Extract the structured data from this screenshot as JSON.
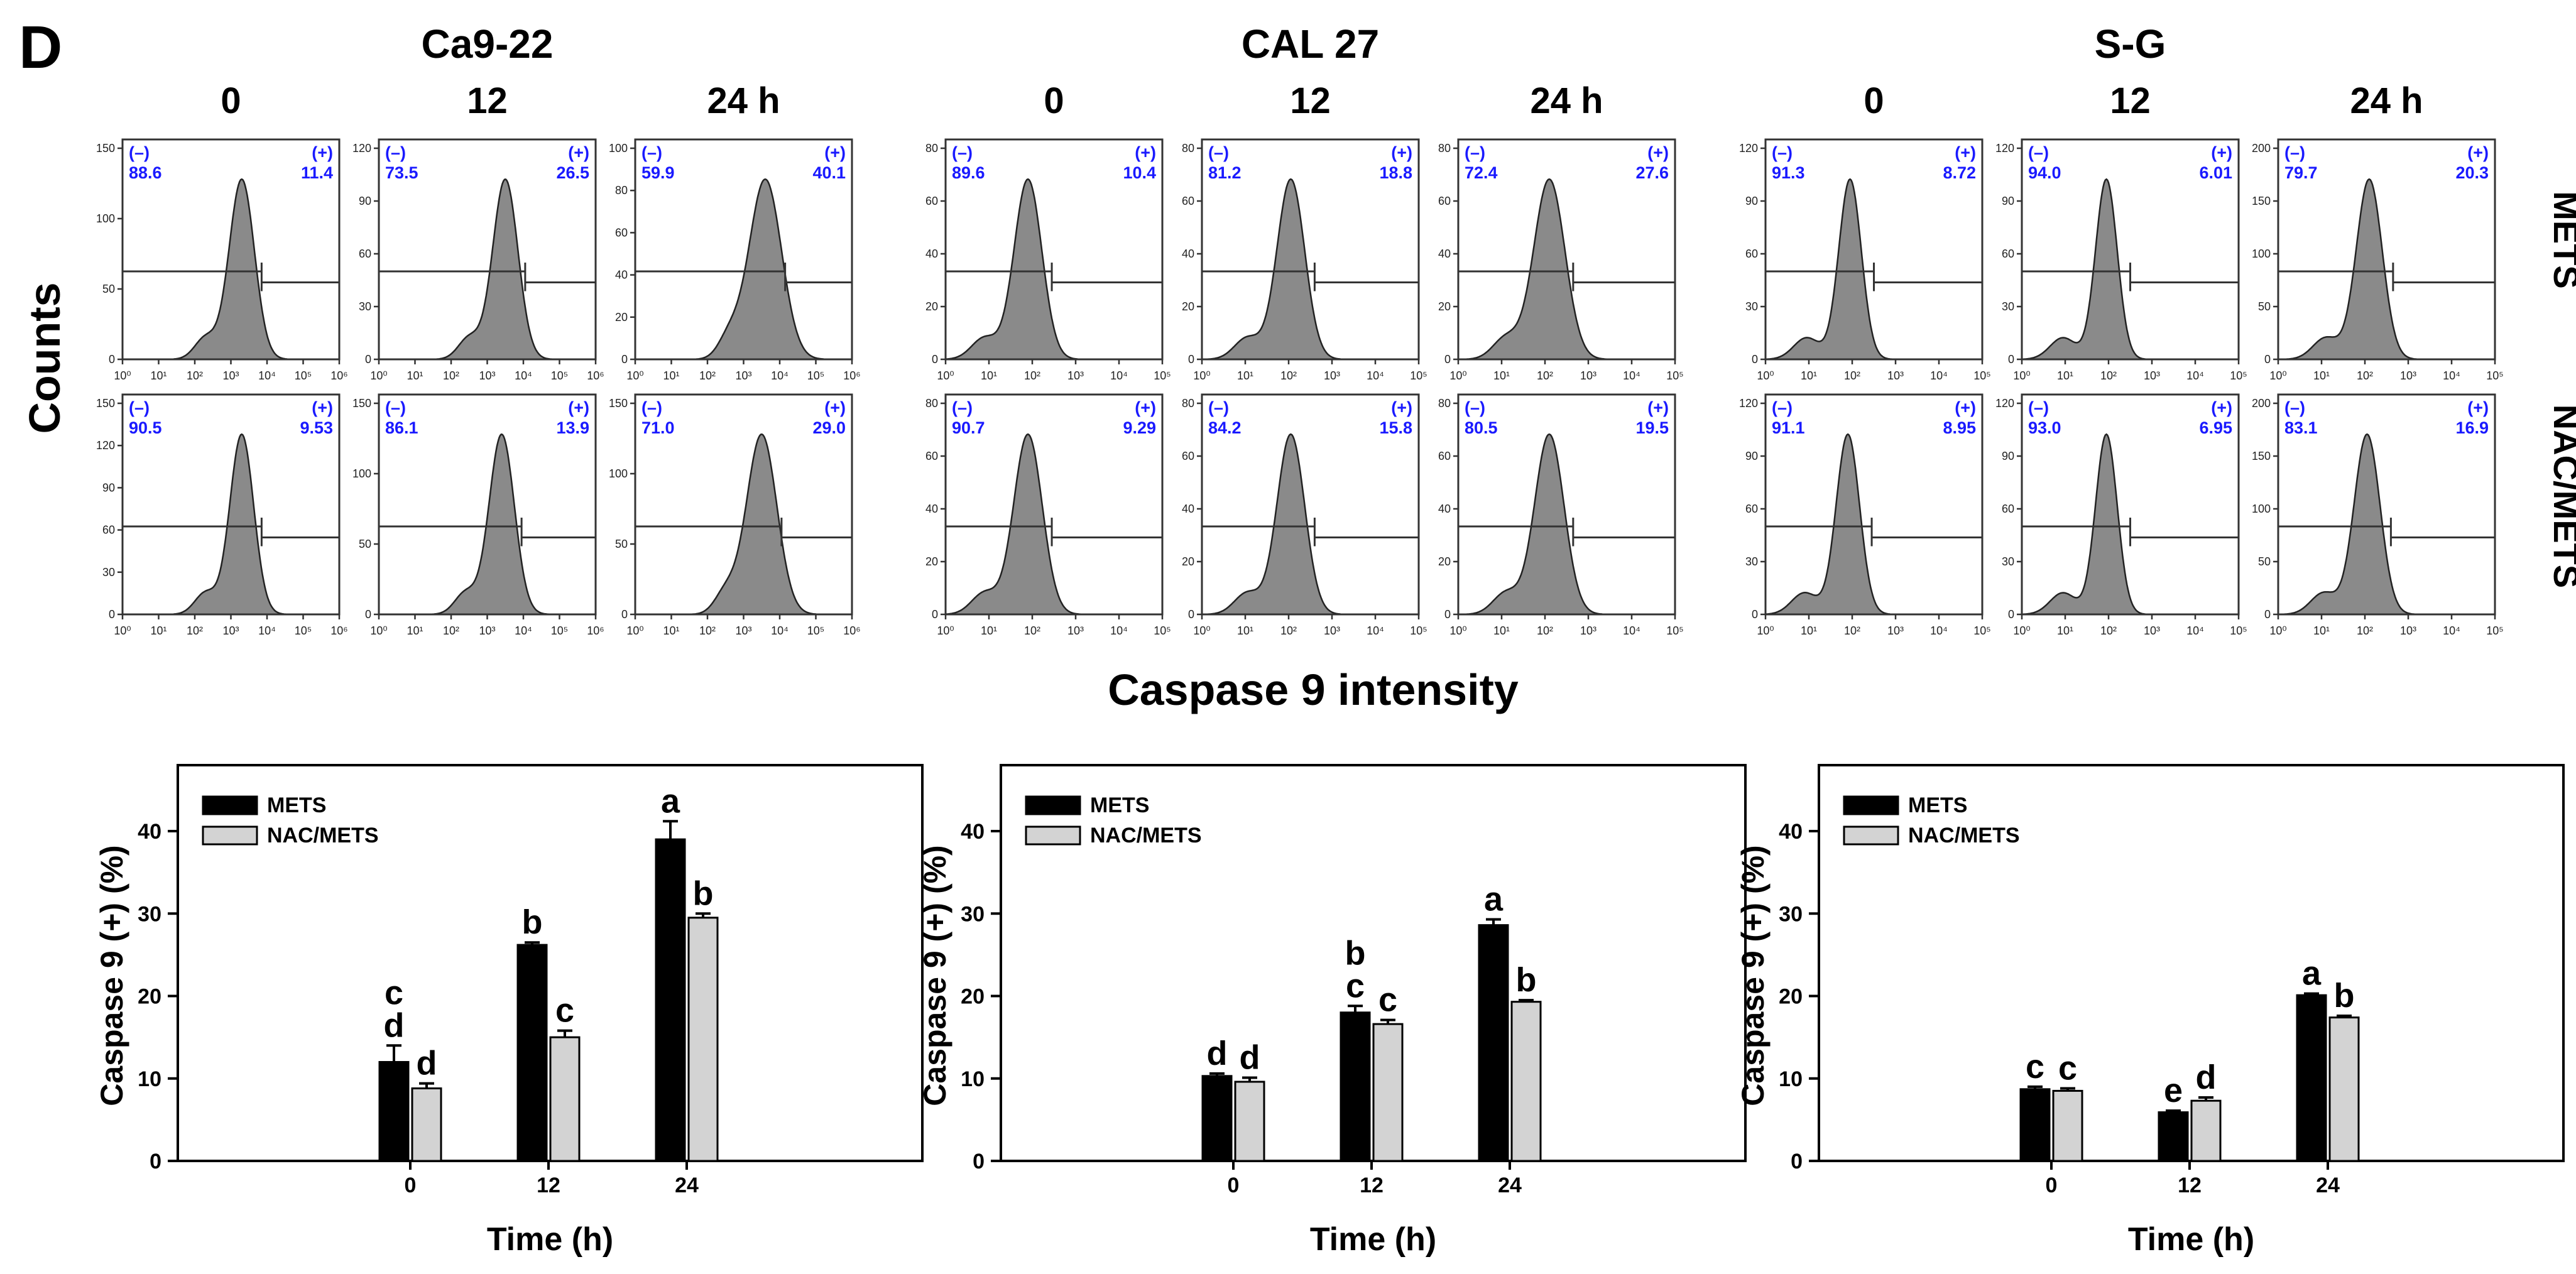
{
  "panel_letter": "D",
  "y_axis_label_flow": "Counts",
  "x_axis_label_flow": "Caspase 9 intensity",
  "row_labels": [
    "METS",
    "NAC/METS"
  ],
  "colors": {
    "bar_mets": "#000000",
    "bar_nac": "#d3d3d3",
    "histogram": "#8a8a8a",
    "percent_text": "#1a1aff"
  },
  "cell_lines": [
    {
      "name": "Ca9-22",
      "times": [
        "0",
        "12",
        "24 h"
      ],
      "log_max": 6,
      "histograms": [
        [
          {
            "neg": "88.6",
            "pos": "11.4",
            "ymax": 150,
            "yticks": [
              "0",
              "50",
              "100",
              "150"
            ],
            "peak": 3.3,
            "sigma": 0.35
          },
          {
            "neg": "73.5",
            "pos": "26.5",
            "ymax": 120,
            "yticks": [
              "0",
              "30",
              "60",
              "90",
              "120"
            ],
            "peak": 3.5,
            "sigma": 0.35
          },
          {
            "neg": "59.9",
            "pos": "40.1",
            "ymax": 100,
            "yticks": [
              "0",
              "20",
              "40",
              "60",
              "80",
              "100"
            ],
            "peak": 3.6,
            "sigma": 0.45
          }
        ],
        [
          {
            "neg": "90.5",
            "pos": "9.53",
            "ymax": 150,
            "yticks": [
              "0",
              "30",
              "60",
              "90",
              "120",
              "150"
            ],
            "peak": 3.3,
            "sigma": 0.33
          },
          {
            "neg": "86.1",
            "pos": "13.9",
            "ymax": 150,
            "yticks": [
              "0",
              "50",
              "100",
              "150"
            ],
            "peak": 3.4,
            "sigma": 0.35
          },
          {
            "neg": "71.0",
            "pos": "29.0",
            "ymax": 150,
            "yticks": [
              "0",
              "50",
              "100",
              "150"
            ],
            "peak": 3.5,
            "sigma": 0.42
          }
        ]
      ],
      "xticks": [
        "10⁰",
        "10¹",
        "10²",
        "10³",
        "10⁴",
        "10⁵",
        "10⁶"
      ]
    },
    {
      "name": "CAL 27",
      "times": [
        "0",
        "12",
        "24 h"
      ],
      "log_max": 5,
      "histograms": [
        [
          {
            "neg": "89.6",
            "pos": "10.4",
            "ymax": 80,
            "yticks": [
              "0",
              "20",
              "40",
              "60",
              "80"
            ],
            "peak": 1.9,
            "sigma": 0.32
          },
          {
            "neg": "81.2",
            "pos": "18.8",
            "ymax": 80,
            "yticks": [
              "0",
              "20",
              "40",
              "60",
              "80"
            ],
            "peak": 2.05,
            "sigma": 0.32
          },
          {
            "neg": "72.4",
            "pos": "27.6",
            "ymax": 80,
            "yticks": [
              "0",
              "20",
              "40",
              "60",
              "80"
            ],
            "peak": 2.1,
            "sigma": 0.36
          }
        ],
        [
          {
            "neg": "90.7",
            "pos": "9.29",
            "ymax": 80,
            "yticks": [
              "0",
              "20",
              "40",
              "60",
              "80"
            ],
            "peak": 1.9,
            "sigma": 0.33
          },
          {
            "neg": "84.2",
            "pos": "15.8",
            "ymax": 80,
            "yticks": [
              "0",
              "20",
              "40",
              "60",
              "80"
            ],
            "peak": 2.05,
            "sigma": 0.32
          },
          {
            "neg": "80.5",
            "pos": "19.5",
            "ymax": 80,
            "yticks": [
              "0",
              "20",
              "40",
              "60",
              "80"
            ],
            "peak": 2.1,
            "sigma": 0.34
          }
        ]
      ],
      "xticks": [
        "10⁰",
        "10¹",
        "10²",
        "10³",
        "10⁴",
        "10⁵"
      ]
    },
    {
      "name": "S-G",
      "times": [
        "0",
        "12",
        "24 h"
      ],
      "log_max": 5,
      "histograms": [
        [
          {
            "neg": "91.3",
            "pos": "8.72",
            "ymax": 120,
            "yticks": [
              "0",
              "30",
              "60",
              "90",
              "120"
            ],
            "peak": 1.95,
            "sigma": 0.26
          },
          {
            "neg": "94.0",
            "pos": "6.01",
            "ymax": 120,
            "yticks": [
              "0",
              "30",
              "60",
              "90",
              "120"
            ],
            "peak": 1.95,
            "sigma": 0.25
          },
          {
            "neg": "79.7",
            "pos": "20.3",
            "ymax": 200,
            "yticks": [
              "0",
              "50",
              "100",
              "150",
              "200"
            ],
            "peak": 2.1,
            "sigma": 0.3
          }
        ],
        [
          {
            "neg": "91.1",
            "pos": "8.95",
            "ymax": 120,
            "yticks": [
              "0",
              "30",
              "60",
              "90",
              "120"
            ],
            "peak": 1.9,
            "sigma": 0.27
          },
          {
            "neg": "93.0",
            "pos": "6.95",
            "ymax": 120,
            "yticks": [
              "0",
              "30",
              "60",
              "90",
              "120"
            ],
            "peak": 1.95,
            "sigma": 0.25
          },
          {
            "neg": "83.1",
            "pos": "16.9",
            "ymax": 200,
            "yticks": [
              "0",
              "50",
              "100",
              "150",
              "200"
            ],
            "peak": 2.05,
            "sigma": 0.3
          }
        ]
      ],
      "xticks": [
        "10⁰",
        "10¹",
        "10²",
        "10³",
        "10⁴",
        "10⁵"
      ]
    }
  ],
  "gate_labels": {
    "neg": "(–)",
    "pos": "(+)"
  },
  "chart_data": [
    {
      "type": "bar",
      "cell_line": "Ca9-22",
      "xlabel": "Time (h)",
      "ylabel": "Caspase 9 (+) (%)",
      "ylim": [
        0,
        48
      ],
      "yticks": [
        "0",
        "10",
        "20",
        "30",
        "40"
      ],
      "categories": [
        "0",
        "12",
        "24"
      ],
      "series": [
        {
          "name": "METS",
          "values": [
            12.0,
            26.2,
            39.0
          ],
          "errors": [
            2.0,
            0.3,
            2.2
          ],
          "letters": [
            "c\nd",
            "b",
            "a"
          ]
        },
        {
          "name": "NAC/METS",
          "values": [
            8.8,
            15.0,
            29.5
          ],
          "errors": [
            0.6,
            0.8,
            0.5
          ],
          "letters": [
            "d",
            "c",
            "b"
          ]
        }
      ]
    },
    {
      "type": "bar",
      "cell_line": "CAL 27",
      "xlabel": "Time (h)",
      "ylabel": "Caspase 9 (+) (%)",
      "ylim": [
        0,
        48
      ],
      "yticks": [
        "0",
        "10",
        "20",
        "30",
        "40"
      ],
      "categories": [
        "0",
        "12",
        "24"
      ],
      "series": [
        {
          "name": "METS",
          "values": [
            10.3,
            18.0,
            28.6
          ],
          "errors": [
            0.3,
            0.8,
            0.7
          ],
          "letters": [
            "d",
            "b\nc",
            "a"
          ]
        },
        {
          "name": "NAC/METS",
          "values": [
            9.6,
            16.6,
            19.3
          ],
          "errors": [
            0.5,
            0.5,
            0.2
          ],
          "letters": [
            "d",
            "c",
            "b"
          ]
        }
      ]
    },
    {
      "type": "bar",
      "cell_line": "S-G",
      "xlabel": "Time (h)",
      "ylabel": "Caspase 9 (+) (%)",
      "ylim": [
        0,
        48
      ],
      "yticks": [
        "0",
        "10",
        "20",
        "30",
        "40"
      ],
      "categories": [
        "0",
        "12",
        "24"
      ],
      "series": [
        {
          "name": "METS",
          "values": [
            8.7,
            5.9,
            20.1
          ],
          "errors": [
            0.3,
            0.2,
            0.2
          ],
          "letters": [
            "c",
            "e",
            "a"
          ]
        },
        {
          "name": "NAC/METS",
          "values": [
            8.5,
            7.3,
            17.4
          ],
          "errors": [
            0.3,
            0.4,
            0.2
          ],
          "letters": [
            "c",
            "d",
            "b"
          ]
        }
      ]
    }
  ]
}
